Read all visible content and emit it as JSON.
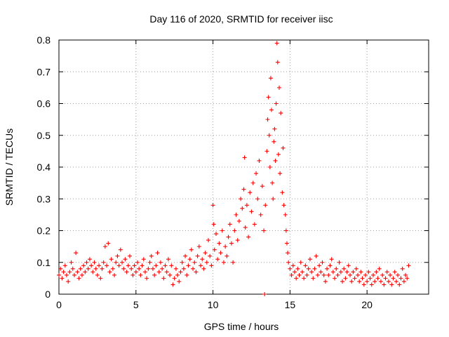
{
  "chart_data": {
    "type": "scatter",
    "title": "Day 116 of 2020, SRMTID for receiver iisc",
    "xlabel": "GPS time / hours",
    "ylabel": "SRMTID / TECUs",
    "xlim": [
      0,
      24
    ],
    "ylim": [
      0,
      0.8
    ],
    "xticks": [
      0,
      5,
      10,
      15,
      20
    ],
    "xtick_labels": [
      "0",
      "5",
      "10",
      "15",
      "20"
    ],
    "yticks": [
      0,
      0.1,
      0.2,
      0.3,
      0.4,
      0.5,
      0.6,
      0.7,
      0.8
    ],
    "ytick_labels": [
      "0",
      "0.1",
      "0.2",
      "0.3",
      "0.4",
      "0.5",
      "0.6",
      "0.7",
      "0.8"
    ],
    "grid": true,
    "marker": "plus",
    "color": "#ff0000",
    "series": [
      {
        "name": "SRMTID",
        "points": [
          [
            0.0,
            0.06
          ],
          [
            0.1,
            0.08
          ],
          [
            0.2,
            0.05
          ],
          [
            0.3,
            0.07
          ],
          [
            0.4,
            0.09
          ],
          [
            0.5,
            0.06
          ],
          [
            0.6,
            0.04
          ],
          [
            0.7,
            0.07
          ],
          [
            0.8,
            0.1
          ],
          [
            0.9,
            0.08
          ],
          [
            1.0,
            0.06
          ],
          [
            1.1,
            0.13
          ],
          [
            1.2,
            0.07
          ],
          [
            1.3,
            0.05
          ],
          [
            1.4,
            0.08
          ],
          [
            1.5,
            0.06
          ],
          [
            1.6,
            0.09
          ],
          [
            1.7,
            0.07
          ],
          [
            1.8,
            0.1
          ],
          [
            1.9,
            0.08
          ],
          [
            2.0,
            0.11
          ],
          [
            2.1,
            0.09
          ],
          [
            2.2,
            0.07
          ],
          [
            2.3,
            0.1
          ],
          [
            2.4,
            0.08
          ],
          [
            2.5,
            0.06
          ],
          [
            2.6,
            0.09
          ],
          [
            2.7,
            0.05
          ],
          [
            2.8,
            0.08
          ],
          [
            2.9,
            0.1
          ],
          [
            3.0,
            0.15
          ],
          [
            3.1,
            0.09
          ],
          [
            3.2,
            0.16
          ],
          [
            3.3,
            0.07
          ],
          [
            3.4,
            0.11
          ],
          [
            3.5,
            0.08
          ],
          [
            3.6,
            0.06
          ],
          [
            3.7,
            0.1
          ],
          [
            3.8,
            0.12
          ],
          [
            3.9,
            0.09
          ],
          [
            4.0,
            0.14
          ],
          [
            4.1,
            0.1
          ],
          [
            4.2,
            0.08
          ],
          [
            4.3,
            0.11
          ],
          [
            4.4,
            0.07
          ],
          [
            4.5,
            0.09
          ],
          [
            4.6,
            0.12
          ],
          [
            4.7,
            0.08
          ],
          [
            4.8,
            0.06
          ],
          [
            4.9,
            0.09
          ],
          [
            5.0,
            0.07
          ],
          [
            5.1,
            0.1
          ],
          [
            5.2,
            0.08
          ],
          [
            5.3,
            0.06
          ],
          [
            5.4,
            0.09
          ],
          [
            5.5,
            0.11
          ],
          [
            5.6,
            0.07
          ],
          [
            5.7,
            0.05
          ],
          [
            5.8,
            0.08
          ],
          [
            5.9,
            0.1
          ],
          [
            6.0,
            0.12
          ],
          [
            6.1,
            0.08
          ],
          [
            6.2,
            0.06
          ],
          [
            6.3,
            0.09
          ],
          [
            6.4,
            0.13
          ],
          [
            6.5,
            0.07
          ],
          [
            6.6,
            0.1
          ],
          [
            6.7,
            0.08
          ],
          [
            6.8,
            0.05
          ],
          [
            6.9,
            0.09
          ],
          [
            7.0,
            0.07
          ],
          [
            7.1,
            0.11
          ],
          [
            7.2,
            0.06
          ],
          [
            7.3,
            0.09
          ],
          [
            7.4,
            0.03
          ],
          [
            7.5,
            0.05
          ],
          [
            7.6,
            0.08
          ],
          [
            7.7,
            0.06
          ],
          [
            7.8,
            0.04
          ],
          [
            7.9,
            0.07
          ],
          [
            8.0,
            0.1
          ],
          [
            8.1,
            0.08
          ],
          [
            8.2,
            0.12
          ],
          [
            8.3,
            0.06
          ],
          [
            8.4,
            0.09
          ],
          [
            8.5,
            0.11
          ],
          [
            8.6,
            0.14
          ],
          [
            8.7,
            0.08
          ],
          [
            8.8,
            0.1
          ],
          [
            8.9,
            0.07
          ],
          [
            9.0,
            0.12
          ],
          [
            9.1,
            0.15
          ],
          [
            9.2,
            0.09
          ],
          [
            9.3,
            0.11
          ],
          [
            9.4,
            0.08
          ],
          [
            9.5,
            0.13
          ],
          [
            9.6,
            0.1
          ],
          [
            9.7,
            0.17
          ],
          [
            9.8,
            0.12
          ],
          [
            9.9,
            0.09
          ],
          [
            10.0,
            0.28
          ],
          [
            10.05,
            0.22
          ],
          [
            10.1,
            0.14
          ],
          [
            10.2,
            0.19
          ],
          [
            10.3,
            0.11
          ],
          [
            10.4,
            0.16
          ],
          [
            10.5,
            0.13
          ],
          [
            10.6,
            0.2
          ],
          [
            10.7,
            0.1
          ],
          [
            10.8,
            0.15
          ],
          [
            10.9,
            0.12
          ],
          [
            11.0,
            0.18
          ],
          [
            11.1,
            0.22
          ],
          [
            11.2,
            0.16
          ],
          [
            11.3,
            0.1
          ],
          [
            11.4,
            0.2
          ],
          [
            11.5,
            0.25
          ],
          [
            11.6,
            0.17
          ],
          [
            11.7,
            0.23
          ],
          [
            11.8,
            0.3
          ],
          [
            11.9,
            0.27
          ],
          [
            12.0,
            0.33
          ],
          [
            12.05,
            0.43
          ],
          [
            12.1,
            0.21
          ],
          [
            12.2,
            0.28
          ],
          [
            12.3,
            0.18
          ],
          [
            12.4,
            0.32
          ],
          [
            12.5,
            0.26
          ],
          [
            12.6,
            0.35
          ],
          [
            12.7,
            0.22
          ],
          [
            12.8,
            0.38
          ],
          [
            12.9,
            0.3
          ],
          [
            13.0,
            0.42
          ],
          [
            13.1,
            0.25
          ],
          [
            13.2,
            0.34
          ],
          [
            13.3,
            0.2
          ],
          [
            13.35,
            0.0
          ],
          [
            13.4,
            0.28
          ],
          [
            13.5,
            0.45
          ],
          [
            13.55,
            0.55
          ],
          [
            13.6,
            0.62
          ],
          [
            13.65,
            0.5
          ],
          [
            13.7,
            0.4
          ],
          [
            13.75,
            0.68
          ],
          [
            13.8,
            0.58
          ],
          [
            13.85,
            0.35
          ],
          [
            13.9,
            0.3
          ],
          [
            13.95,
            0.48
          ],
          [
            14.0,
            0.52
          ],
          [
            14.05,
            0.42
          ],
          [
            14.1,
            0.6
          ],
          [
            14.15,
            0.79
          ],
          [
            14.2,
            0.73
          ],
          [
            14.25,
            0.44
          ],
          [
            14.3,
            0.65
          ],
          [
            14.35,
            0.38
          ],
          [
            14.4,
            0.57
          ],
          [
            14.5,
            0.32
          ],
          [
            14.55,
            0.46
          ],
          [
            14.6,
            0.28
          ],
          [
            14.7,
            0.25
          ],
          [
            14.75,
            0.2
          ],
          [
            14.8,
            0.16
          ],
          [
            14.85,
            0.13
          ],
          [
            14.9,
            0.1
          ],
          [
            15.0,
            0.08
          ],
          [
            15.1,
            0.06
          ],
          [
            15.2,
            0.09
          ],
          [
            15.3,
            0.07
          ],
          [
            15.4,
            0.05
          ],
          [
            15.5,
            0.08
          ],
          [
            15.6,
            0.06
          ],
          [
            15.7,
            0.1
          ],
          [
            15.8,
            0.07
          ],
          [
            15.9,
            0.05
          ],
          [
            16.0,
            0.09
          ],
          [
            16.1,
            0.06
          ],
          [
            16.2,
            0.08
          ],
          [
            16.3,
            0.11
          ],
          [
            16.4,
            0.07
          ],
          [
            16.5,
            0.05
          ],
          [
            16.6,
            0.08
          ],
          [
            16.7,
            0.12
          ],
          [
            16.8,
            0.06
          ],
          [
            16.9,
            0.09
          ],
          [
            17.0,
            0.07
          ],
          [
            17.1,
            0.1
          ],
          [
            17.2,
            0.06
          ],
          [
            17.3,
            0.04
          ],
          [
            17.4,
            0.08
          ],
          [
            17.5,
            0.06
          ],
          [
            17.6,
            0.09
          ],
          [
            17.7,
            0.11
          ],
          [
            17.8,
            0.07
          ],
          [
            17.9,
            0.05
          ],
          [
            18.0,
            0.08
          ],
          [
            18.1,
            0.06
          ],
          [
            18.2,
            0.1
          ],
          [
            18.3,
            0.07
          ],
          [
            18.4,
            0.04
          ],
          [
            18.5,
            0.08
          ],
          [
            18.6,
            0.05
          ],
          [
            18.7,
            0.07
          ],
          [
            18.8,
            0.09
          ],
          [
            18.9,
            0.06
          ],
          [
            19.0,
            0.04
          ],
          [
            19.1,
            0.07
          ],
          [
            19.2,
            0.05
          ],
          [
            19.3,
            0.08
          ],
          [
            19.4,
            0.06
          ],
          [
            19.5,
            0.04
          ],
          [
            19.6,
            0.07
          ],
          [
            19.7,
            0.05
          ],
          [
            19.8,
            0.03
          ],
          [
            19.9,
            0.06
          ],
          [
            20.0,
            0.04
          ],
          [
            20.1,
            0.07
          ],
          [
            20.2,
            0.05
          ],
          [
            20.3,
            0.03
          ],
          [
            20.4,
            0.06
          ],
          [
            20.5,
            0.04
          ],
          [
            20.6,
            0.07
          ],
          [
            20.7,
            0.05
          ],
          [
            20.8,
            0.08
          ],
          [
            20.9,
            0.04
          ],
          [
            21.0,
            0.06
          ],
          [
            21.1,
            0.03
          ],
          [
            21.2,
            0.05
          ],
          [
            21.3,
            0.07
          ],
          [
            21.4,
            0.04
          ],
          [
            21.5,
            0.06
          ],
          [
            21.6,
            0.03
          ],
          [
            21.7,
            0.05
          ],
          [
            21.8,
            0.07
          ],
          [
            21.9,
            0.04
          ],
          [
            22.0,
            0.06
          ],
          [
            22.1,
            0.03
          ],
          [
            22.2,
            0.05
          ],
          [
            22.3,
            0.08
          ],
          [
            22.4,
            0.04
          ],
          [
            22.5,
            0.06
          ],
          [
            22.6,
            0.05
          ],
          [
            22.7,
            0.09
          ]
        ]
      }
    ]
  }
}
